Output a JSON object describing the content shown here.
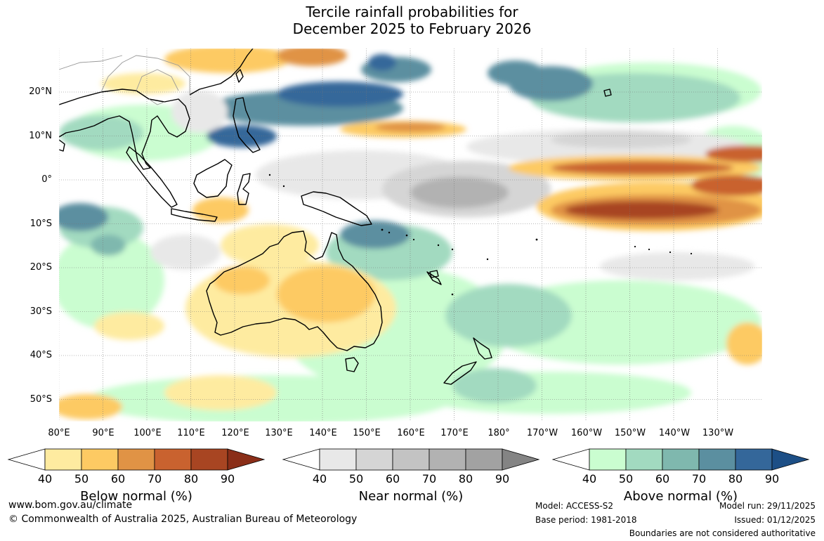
{
  "title": {
    "line1": "Tercile rainfall probabilities for",
    "line2": "December 2025 to February 2026"
  },
  "map": {
    "latitude_labels": [
      "20°N",
      "10°N",
      "0°",
      "10°S",
      "20°S",
      "30°S",
      "40°S",
      "50°S"
    ],
    "longitude_labels": [
      "80°E",
      "90°E",
      "100°E",
      "110°E",
      "120°E",
      "130°E",
      "140°E",
      "150°E",
      "160°E",
      "170°E",
      "180°",
      "170°W",
      "160°W",
      "150°W",
      "140°W",
      "130°W"
    ]
  },
  "legends": [
    {
      "label": "Below normal (%)",
      "ticks": [
        "40",
        "50",
        "60",
        "70",
        "80",
        "90"
      ],
      "colors": [
        "#ffffff",
        "#feeba0",
        "#fdca63",
        "#e09345",
        "#c9622f",
        "#a84522",
        "#8a2e18"
      ]
    },
    {
      "label": "Near normal (%)",
      "ticks": [
        "40",
        "50",
        "60",
        "70",
        "80",
        "90"
      ],
      "colors": [
        "#ffffff",
        "#e8e8e8",
        "#d5d5d5",
        "#c3c3c3",
        "#b2b2b2",
        "#a2a2a2",
        "#848484"
      ]
    },
    {
      "label": "Above normal (%)",
      "ticks": [
        "40",
        "50",
        "60",
        "70",
        "80",
        "90"
      ],
      "colors": [
        "#ffffff",
        "#cafdd0",
        "#a2dac0",
        "#7fb8ae",
        "#5b8fa0",
        "#34679a",
        "#1d4f86"
      ]
    }
  ],
  "footer": {
    "url": "www.bom.gov.au/climate",
    "copyright": "© Commonwealth of Australia 2025, Australian Bureau of Meteorology",
    "model": "Model: ACCESS-S2",
    "base_period": "Base period: 1981-2018",
    "model_run": "Model run: 29/11/2025",
    "issued": "Issued: 01/12/2025",
    "disclaimer": "Boundaries are not considered authoritative"
  }
}
